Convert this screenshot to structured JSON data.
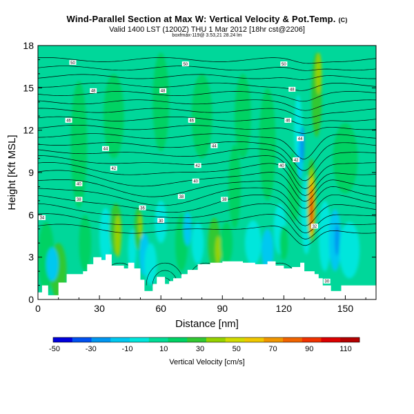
{
  "chart_data": {
    "type": "heatmap",
    "title": "Wind-Parallel Section at Max W: Vertical Velocity & Pot.Temp.",
    "title_suffix": "(C)",
    "subtitle": "Valid 1400 LST (1200Z) THU 1 Mar 2012 [18hr cst@2206]",
    "subtitle2": "boxfmax-119@ 3.53,21 28.24 lm",
    "xlabel": "Distance [nm]",
    "ylabel": "Height [Kft MSL]",
    "xlim": [
      0,
      165
    ],
    "ylim": [
      0,
      18
    ],
    "x_ticks": [
      "0",
      "30",
      "60",
      "90",
      "120",
      "150"
    ],
    "y_ticks": [
      "0",
      "3",
      "6",
      "9",
      "12",
      "15",
      "18"
    ],
    "colorbar": {
      "label": "Vertical Velocity [cm/s]",
      "tick_labels": [
        "-50",
        "-30",
        "-10",
        "10",
        "30",
        "50",
        "70",
        "90",
        "110"
      ],
      "colors": [
        "#0000dc",
        "#0050f0",
        "#0096f0",
        "#00c8f0",
        "#00e6dc",
        "#00dc96",
        "#00d264",
        "#32c832",
        "#96d200",
        "#d2dc00",
        "#f0c800",
        "#f09600",
        "#f06400",
        "#f03200",
        "#dc0000",
        "#b40000"
      ]
    },
    "background_color": "#00d79a",
    "terrain_color": "#ffffff",
    "isentrope_labels": [
      "30",
      "32",
      "34",
      "36",
      "38",
      "40",
      "42",
      "44",
      "46",
      "48",
      "50"
    ],
    "updraft_peak": {
      "x_nm": 133,
      "height_kft": 7,
      "value_cm_s": 110
    },
    "downdraft_min": {
      "x_nm": 146,
      "height_kft": 4.4,
      "value_cm_s": -20
    }
  }
}
